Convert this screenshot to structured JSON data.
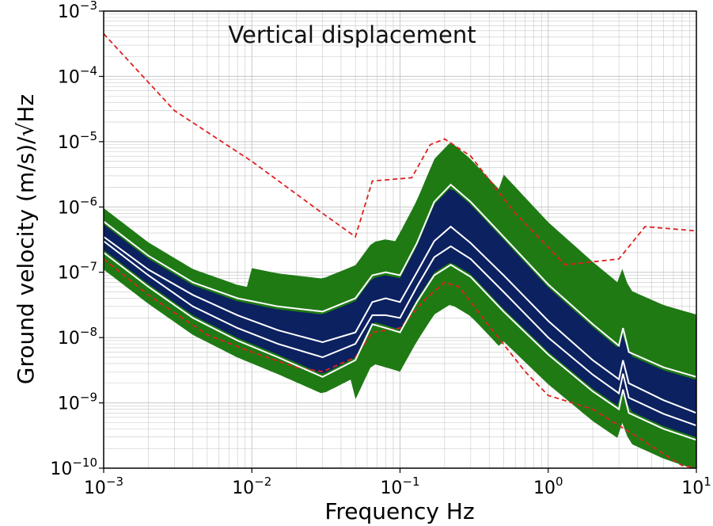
{
  "chart_data": {
    "type": "line",
    "title": "Vertical displacement",
    "xlabel": "Frequency Hz",
    "ylabel": "Ground velocity (m/s)/√Hz",
    "xscale": "log",
    "yscale": "log",
    "xlim": [
      0.001,
      10
    ],
    "ylim": [
      1e-10,
      0.001
    ],
    "grid": "major and minor",
    "legend": "none",
    "x_ticks": [
      {
        "value": 0.001,
        "base": "10",
        "exp": "−3"
      },
      {
        "value": 0.01,
        "base": "10",
        "exp": "−2"
      },
      {
        "value": 0.1,
        "base": "10",
        "exp": "−1"
      },
      {
        "value": 1,
        "base": "10",
        "exp": "0"
      },
      {
        "value": 10,
        "base": "10",
        "exp": "1"
      }
    ],
    "y_ticks": [
      {
        "value": 1e-10,
        "base": "10",
        "exp": "−10"
      },
      {
        "value": 1e-09,
        "base": "10",
        "exp": "−9"
      },
      {
        "value": 1e-08,
        "base": "10",
        "exp": "−8"
      },
      {
        "value": 1e-07,
        "base": "10",
        "exp": "−7"
      },
      {
        "value": 1e-06,
        "base": "10",
        "exp": "−6"
      },
      {
        "value": 1e-05,
        "base": "10",
        "exp": "−5"
      },
      {
        "value": 0.0001,
        "base": "10",
        "exp": "−4"
      },
      {
        "value": 0.001,
        "base": "10",
        "exp": "−3"
      }
    ],
    "colors": {
      "density_outer": "#1f7a14",
      "density_inner": "#0c2160",
      "percentile_lines": "#ffffff",
      "model_lines": "#e02020",
      "grid": "#c8c8c8"
    },
    "series": [
      {
        "style": "dashed-red",
        "points": [
          [
            0.001,
            0.00045
          ],
          [
            0.003,
            3e-05
          ],
          [
            0.01,
            5e-06
          ],
          [
            0.03,
            8e-07
          ],
          [
            0.05,
            3.5e-07
          ],
          [
            0.065,
            2.5e-06
          ],
          [
            0.12,
            2.8e-06
          ],
          [
            0.16,
            9e-06
          ],
          [
            0.2,
            1.1e-05
          ],
          [
            0.3,
            6e-06
          ],
          [
            0.6,
            8e-07
          ],
          [
            1.3,
            1.3e-07
          ],
          [
            3.0,
            1.6e-07
          ],
          [
            4.5,
            5e-07
          ],
          [
            10,
            4.3e-07
          ]
        ]
      },
      {
        "style": "dashed-red",
        "points": [
          [
            0.001,
            1.6e-07
          ],
          [
            0.002,
            4.5e-08
          ],
          [
            0.005,
            1.1e-08
          ],
          [
            0.01,
            6e-09
          ],
          [
            0.02,
            3.5e-09
          ],
          [
            0.03,
            3e-09
          ],
          [
            0.05,
            5e-09
          ],
          [
            0.065,
            1.2e-08
          ],
          [
            0.1,
            1.4e-08
          ],
          [
            0.15,
            4e-08
          ],
          [
            0.2,
            7e-08
          ],
          [
            0.25,
            6e-08
          ],
          [
            0.4,
            1.5e-08
          ],
          [
            0.7,
            3e-09
          ],
          [
            1.0,
            1.3e-09
          ],
          [
            2.0,
            8e-10
          ],
          [
            4.0,
            3e-10
          ],
          [
            8.0,
            1.1e-10
          ],
          [
            10,
            1e-10
          ]
        ]
      },
      {
        "style": "white-percentile",
        "points": [
          [
            0.001,
            6e-07
          ],
          [
            0.002,
            1.8e-07
          ],
          [
            0.004,
            7e-08
          ],
          [
            0.008,
            4e-08
          ],
          [
            0.015,
            3e-08
          ],
          [
            0.03,
            2.5e-08
          ],
          [
            0.05,
            4e-08
          ],
          [
            0.065,
            9e-08
          ],
          [
            0.08,
            1e-07
          ],
          [
            0.1,
            9e-08
          ],
          [
            0.13,
            2.8e-07
          ],
          [
            0.17,
            1.2e-06
          ],
          [
            0.22,
            2.2e-06
          ],
          [
            0.3,
            1.2e-06
          ],
          [
            0.5,
            3.5e-07
          ],
          [
            1.0,
            6.5e-08
          ],
          [
            2.0,
            1.6e-08
          ],
          [
            3.0,
            7.5e-09
          ],
          [
            3.2,
            1.4e-08
          ],
          [
            3.5,
            6e-09
          ],
          [
            6.0,
            3.5e-09
          ],
          [
            10,
            2.5e-09
          ]
        ]
      },
      {
        "style": "white-percentile",
        "points": [
          [
            0.001,
            3.5e-07
          ],
          [
            0.002,
            1.1e-07
          ],
          [
            0.004,
            4.5e-08
          ],
          [
            0.008,
            2.2e-08
          ],
          [
            0.015,
            1.3e-08
          ],
          [
            0.03,
            8.5e-09
          ],
          [
            0.05,
            1.2e-08
          ],
          [
            0.065,
            3.5e-08
          ],
          [
            0.08,
            4e-08
          ],
          [
            0.1,
            3.5e-08
          ],
          [
            0.13,
            1e-07
          ],
          [
            0.17,
            3e-07
          ],
          [
            0.22,
            5e-07
          ],
          [
            0.3,
            2.8e-07
          ],
          [
            0.5,
            9e-08
          ],
          [
            1.0,
            1.8e-08
          ],
          [
            2.0,
            4.5e-09
          ],
          [
            3.0,
            2.3e-09
          ],
          [
            3.2,
            4.5e-09
          ],
          [
            3.5,
            2e-09
          ],
          [
            6.0,
            1.1e-09
          ],
          [
            10,
            7e-10
          ]
        ]
      },
      {
        "style": "white-percentile",
        "points": [
          [
            0.001,
            2e-07
          ],
          [
            0.002,
            6e-08
          ],
          [
            0.004,
            2e-08
          ],
          [
            0.008,
            9e-09
          ],
          [
            0.015,
            5e-09
          ],
          [
            0.03,
            2.5e-09
          ],
          [
            0.05,
            4.5e-09
          ],
          [
            0.065,
            1.6e-08
          ],
          [
            0.08,
            1.4e-08
          ],
          [
            0.1,
            1.2e-08
          ],
          [
            0.13,
            3.5e-08
          ],
          [
            0.17,
            9e-08
          ],
          [
            0.22,
            1.3e-07
          ],
          [
            0.3,
            8.5e-08
          ],
          [
            0.5,
            2.5e-08
          ],
          [
            1.0,
            5.5e-09
          ],
          [
            2.0,
            1.5e-09
          ],
          [
            3.0,
            8e-10
          ],
          [
            3.2,
            1.6e-09
          ],
          [
            3.5,
            7e-10
          ],
          [
            6.0,
            4e-10
          ],
          [
            10,
            2.7e-10
          ]
        ]
      },
      {
        "style": "white-percentile",
        "points": [
          [
            0.001,
            3e-07
          ],
          [
            0.002,
            9e-08
          ],
          [
            0.004,
            3e-08
          ],
          [
            0.008,
            1.4e-08
          ],
          [
            0.015,
            8e-09
          ],
          [
            0.03,
            5e-09
          ],
          [
            0.05,
            8e-09
          ],
          [
            0.065,
            2.2e-08
          ],
          [
            0.08,
            2.2e-08
          ],
          [
            0.1,
            2e-08
          ],
          [
            0.13,
            6e-08
          ],
          [
            0.17,
            1.7e-07
          ],
          [
            0.22,
            2.5e-07
          ],
          [
            0.3,
            1.6e-07
          ],
          [
            0.5,
            5e-08
          ],
          [
            1.0,
            1e-08
          ],
          [
            2.0,
            2.7e-09
          ],
          [
            3.0,
            1.4e-09
          ],
          [
            3.2,
            2.8e-09
          ],
          [
            3.5,
            1.2e-09
          ],
          [
            6.0,
            6.8e-10
          ],
          [
            10,
            4.5e-10
          ]
        ]
      }
    ]
  }
}
